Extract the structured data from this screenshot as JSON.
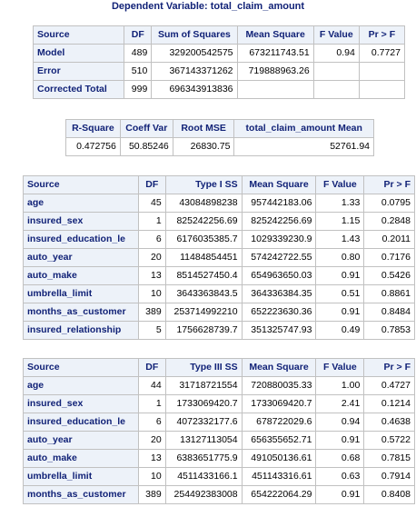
{
  "title": "Dependent Variable: total_claim_amount",
  "anova": {
    "headers": [
      "Source",
      "DF",
      "Sum of Squares",
      "Mean Square",
      "F Value",
      "Pr > F"
    ],
    "rows": [
      [
        "Model",
        "489",
        "329200542575",
        "673211743.51",
        "0.94",
        "0.7727"
      ],
      [
        "Error",
        "510",
        "367143371262",
        "719888963.26",
        "",
        ""
      ],
      [
        "Corrected Total",
        "999",
        "696343913836",
        "",
        "",
        ""
      ]
    ]
  },
  "fit": {
    "headers": [
      "R-Square",
      "Coeff Var",
      "Root MSE",
      "total_claim_amount Mean"
    ],
    "values": [
      "0.472756",
      "50.85246",
      "26830.75",
      "52761.94"
    ]
  },
  "type1": {
    "headers": [
      "Source",
      "DF",
      "Type I SS",
      "Mean Square",
      "F Value",
      "Pr > F"
    ],
    "rows": [
      [
        "age",
        "45",
        "43084898238",
        "957442183.06",
        "1.33",
        "0.0795"
      ],
      [
        "insured_sex",
        "1",
        "825242256.69",
        "825242256.69",
        "1.15",
        "0.2848"
      ],
      [
        "insured_education_le",
        "6",
        "6176035385.7",
        "1029339230.9",
        "1.43",
        "0.2011"
      ],
      [
        "auto_year",
        "20",
        "11484854451",
        "574242722.55",
        "0.80",
        "0.7176"
      ],
      [
        "auto_make",
        "13",
        "8514527450.4",
        "654963650.03",
        "0.91",
        "0.5426"
      ],
      [
        "umbrella_limit",
        "10",
        "3643363843.5",
        "364336384.35",
        "0.51",
        "0.8861"
      ],
      [
        "months_as_customer",
        "389",
        "253714992210",
        "652223630.36",
        "0.91",
        "0.8484"
      ],
      [
        "insured_relationship",
        "5",
        "1756628739.7",
        "351325747.93",
        "0.49",
        "0.7853"
      ]
    ]
  },
  "type3": {
    "headers": [
      "Source",
      "DF",
      "Type III SS",
      "Mean Square",
      "F Value",
      "Pr > F"
    ],
    "rows": [
      [
        "age",
        "44",
        "31718721554",
        "720880035.33",
        "1.00",
        "0.4727"
      ],
      [
        "insured_sex",
        "1",
        "1733069420.7",
        "1733069420.7",
        "2.41",
        "0.1214"
      ],
      [
        "insured_education_le",
        "6",
        "4072332177.6",
        "678722029.6",
        "0.94",
        "0.4638"
      ],
      [
        "auto_year",
        "20",
        "13127113054",
        "656355652.71",
        "0.91",
        "0.5722"
      ],
      [
        "auto_make",
        "13",
        "6383651775.9",
        "491050136.61",
        "0.68",
        "0.7815"
      ],
      [
        "umbrella_limit",
        "10",
        "4511433166.1",
        "451143316.61",
        "0.63",
        "0.7914"
      ],
      [
        "months_as_customer",
        "389",
        "254492383008",
        "654222064.29",
        "0.91",
        "0.8408"
      ]
    ]
  }
}
